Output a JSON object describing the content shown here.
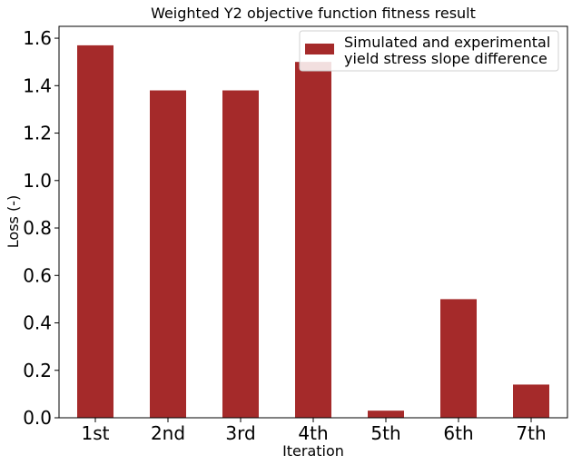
{
  "chart_data": {
    "type": "bar",
    "title": "Weighted Y2 objective function fitness result",
    "xlabel": "Iteration",
    "ylabel": "Loss (-)",
    "categories": [
      "1st",
      "2nd",
      "3rd",
      "4th",
      "5th",
      "6th",
      "7th"
    ],
    "series": [
      {
        "name": "Simulated and experimental\nyield stress slope difference",
        "values": [
          1.57,
          1.38,
          1.38,
          1.5,
          0.03,
          0.5,
          0.14
        ],
        "color": "#a52a2a"
      }
    ],
    "ylim": [
      0,
      1.65
    ],
    "yticks": [
      "0.0",
      "0.2",
      "0.4",
      "0.6",
      "0.8",
      "1.0",
      "1.2",
      "1.4",
      "1.6"
    ],
    "legend_position": "upper right",
    "grid": false
  }
}
